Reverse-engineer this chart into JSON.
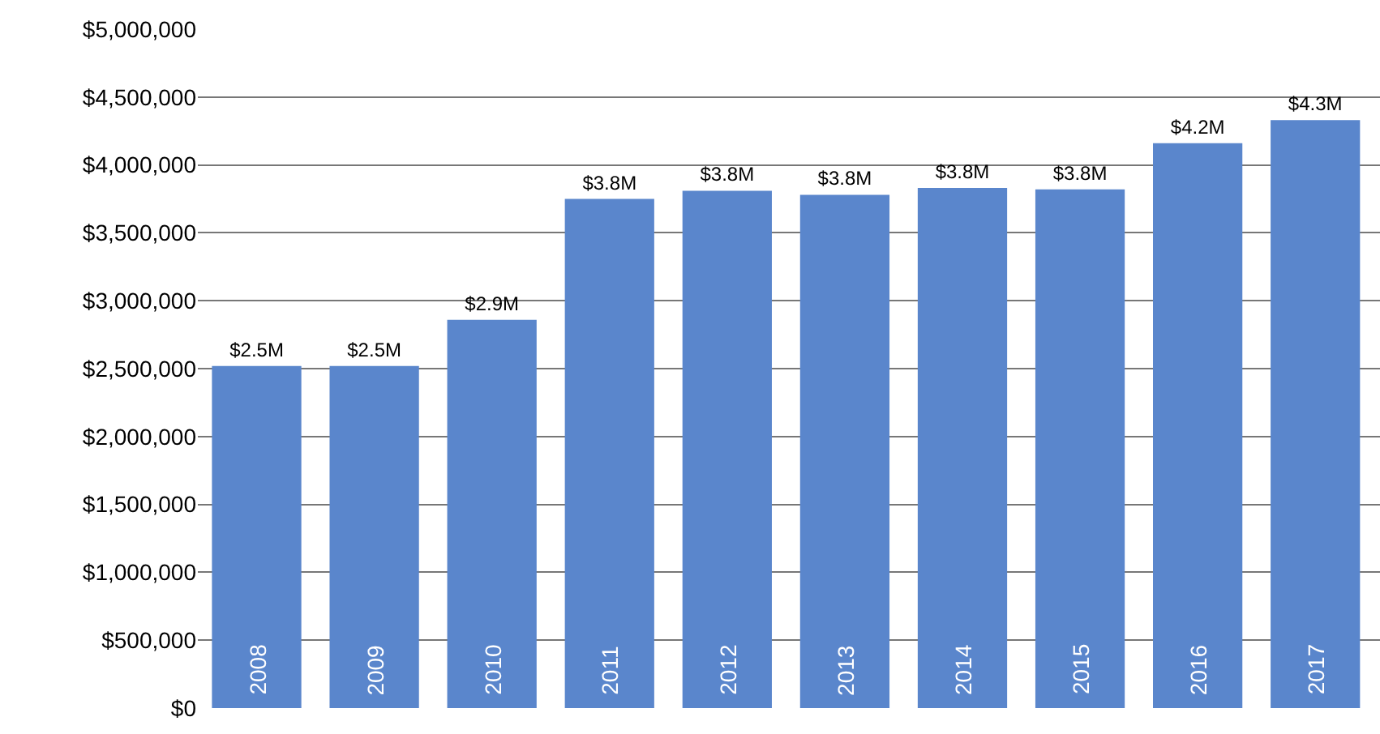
{
  "chart_data": {
    "type": "bar",
    "categories": [
      "2008",
      "2009",
      "2010",
      "2011",
      "2012",
      "2013",
      "2014",
      "2015",
      "2016",
      "2017"
    ],
    "values": [
      2520000,
      2520000,
      2860000,
      3750000,
      3810000,
      3780000,
      3830000,
      3820000,
      4160000,
      4330000
    ],
    "value_labels": [
      "$2.5M",
      "$2.5M",
      "$2.9M",
      "$3.8M",
      "$3.8M",
      "$3.8M",
      "$3.8M",
      "$3.8M",
      "$4.2M",
      "$4.3M"
    ],
    "color": "#5a86cc",
    "ylim": [
      0,
      5000000
    ],
    "yticks": [
      {
        "value": 0,
        "label": "$0"
      },
      {
        "value": 500000,
        "label": "$500,000"
      },
      {
        "value": 1000000,
        "label": "$1,000,000"
      },
      {
        "value": 1500000,
        "label": "$1,500,000"
      },
      {
        "value": 2000000,
        "label": "$2,000,000"
      },
      {
        "value": 2500000,
        "label": "$2,500,000"
      },
      {
        "value": 3000000,
        "label": "$3,000,000"
      },
      {
        "value": 3500000,
        "label": "$3,500,000"
      },
      {
        "value": 4000000,
        "label": "$4,000,000"
      },
      {
        "value": 4500000,
        "label": "$4,500,000"
      },
      {
        "value": 5000000,
        "label": "$5,000,000"
      }
    ],
    "grid": "y"
  }
}
